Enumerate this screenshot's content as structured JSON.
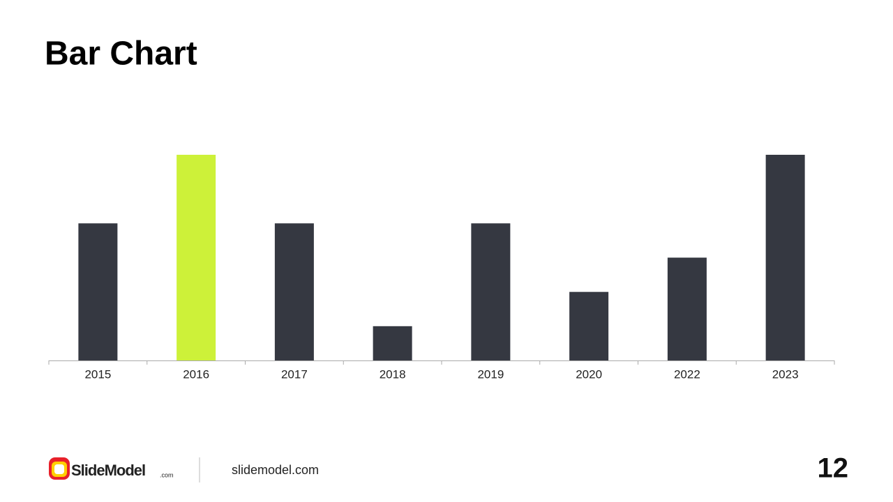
{
  "chart_data": {
    "type": "bar",
    "title": "Bar Chart",
    "categories": [
      "2015",
      "2016",
      "2017",
      "2018",
      "2019",
      "2020",
      "2022",
      "2023"
    ],
    "values": [
      4,
      6,
      4,
      1,
      4,
      2,
      3,
      6
    ],
    "colors": [
      "#353841",
      "#cdf139",
      "#353841",
      "#353841",
      "#353841",
      "#353841",
      "#353841",
      "#353841"
    ]
  },
  "footer": {
    "logo": "SlideModel",
    "logo_suffix": ".com",
    "url": "slidemodel.com",
    "page_number": "12"
  }
}
